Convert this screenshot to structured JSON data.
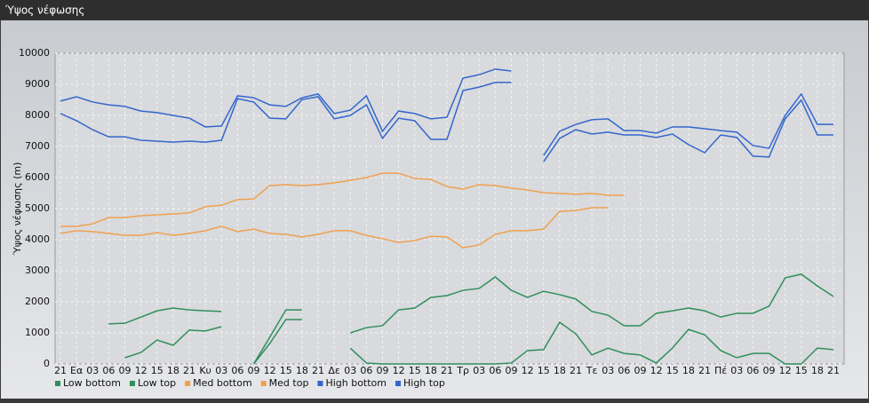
{
  "chart_data": {
    "type": "line",
    "title": "Ύψος νέφωσης",
    "ylabel": "Ύψος νέφωσης (m)",
    "categories": [
      "21",
      "Εα",
      "03",
      "06",
      "09",
      "12",
      "15",
      "18",
      "21",
      "Κυ",
      "03",
      "06",
      "09",
      "12",
      "15",
      "18",
      "21",
      "Δε",
      "03",
      "06",
      "09",
      "12",
      "15",
      "18",
      "21",
      "Τρ",
      "03",
      "06",
      "09",
      "12",
      "15",
      "18",
      "21",
      "Τε",
      "03",
      "06",
      "09",
      "12",
      "15",
      "18",
      "21",
      "Πέ",
      "03",
      "06",
      "09",
      "12",
      "15",
      "18",
      "21"
    ],
    "ylim": [
      0,
      10000
    ],
    "yticks": [
      0,
      1000,
      2000,
      3000,
      4000,
      5000,
      6000,
      7000,
      8000,
      9000,
      10000
    ],
    "grid": true,
    "series": [
      {
        "name": "Low bottom",
        "color": "#2f8f5a",
        "values": [
          null,
          null,
          null,
          null,
          200,
          370,
          770,
          600,
          1090,
          1060,
          1200,
          null,
          0,
          660,
          1430,
          1430,
          null,
          null,
          510,
          30,
          0,
          0,
          0,
          0,
          0,
          0,
          0,
          0,
          30,
          430,
          460,
          1340,
          970,
          290,
          510,
          340,
          290,
          30,
          510,
          1110,
          940,
          430,
          200,
          340,
          340,
          0,
          0,
          510,
          460
        ]
      },
      {
        "name": "Low top",
        "color": "#2f8f5a",
        "values": [
          null,
          null,
          null,
          1290,
          1310,
          1510,
          1710,
          1800,
          1740,
          1710,
          1690,
          null,
          0,
          860,
          1740,
          1740,
          null,
          null,
          1000,
          1170,
          1230,
          1740,
          1800,
          2140,
          2200,
          2370,
          2430,
          2800,
          2370,
          2140,
          2340,
          2230,
          2090,
          1690,
          1570,
          1230,
          1230,
          1630,
          1710,
          1800,
          1710,
          1510,
          1630,
          1630,
          1860,
          2770,
          2890,
          2510,
          2170
        ]
      },
      {
        "name": "Med bottom",
        "color": "#f0a050",
        "values": [
          4200,
          4290,
          4260,
          4200,
          4140,
          4140,
          4230,
          4140,
          4200,
          4290,
          4430,
          4260,
          4340,
          4200,
          4170,
          4090,
          4170,
          4290,
          4290,
          4140,
          4030,
          3910,
          3970,
          4110,
          4090,
          3740,
          3830,
          4170,
          4290,
          4290,
          4340,
          4910,
          4940,
          5030,
          5030,
          null,
          null,
          null,
          null,
          null,
          null,
          null,
          null,
          null,
          null,
          null,
          null,
          null,
          null
        ]
      },
      {
        "name": "Med top",
        "color": "#f0a050",
        "values": [
          4430,
          4430,
          4510,
          4710,
          4710,
          4770,
          4800,
          4830,
          4860,
          5060,
          5110,
          5290,
          5310,
          5740,
          5770,
          5740,
          5770,
          5830,
          5910,
          6000,
          6140,
          6140,
          5970,
          5940,
          5710,
          5630,
          5770,
          5740,
          5660,
          5600,
          5510,
          5490,
          5460,
          5490,
          5430,
          5430,
          null,
          null,
          null,
          null,
          null,
          null,
          null,
          null,
          null,
          null,
          null,
          null,
          null
        ]
      },
      {
        "name": "High bottom",
        "color": "#3366cc",
        "values": [
          8060,
          7830,
          7540,
          7310,
          7310,
          7200,
          7170,
          7140,
          7170,
          7140,
          7200,
          8540,
          8430,
          7910,
          7890,
          8510,
          8600,
          7890,
          8000,
          8340,
          7260,
          7910,
          7830,
          7230,
          7230,
          8800,
          8910,
          9060,
          9060,
          null,
          6510,
          7260,
          7540,
          7400,
          7460,
          7370,
          7370,
          7290,
          7400,
          7060,
          6800,
          7370,
          7290,
          6690,
          6660,
          7890,
          8490,
          7370,
          7370
        ]
      },
      {
        "name": "High top",
        "color": "#3366cc",
        "values": [
          8460,
          8600,
          8430,
          8340,
          8290,
          8140,
          8090,
          8000,
          7910,
          7630,
          7660,
          8630,
          8570,
          8340,
          8290,
          8570,
          8690,
          8060,
          8170,
          8630,
          7490,
          8140,
          8060,
          7890,
          7940,
          9200,
          9310,
          9490,
          9430,
          null,
          6710,
          7490,
          7710,
          7860,
          7890,
          7510,
          7510,
          7430,
          7630,
          7630,
          7570,
          7510,
          7460,
          7030,
          6940,
          8000,
          8690,
          7710,
          7710
        ]
      }
    ]
  }
}
